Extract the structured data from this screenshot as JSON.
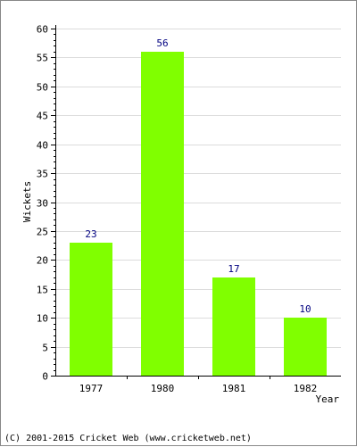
{
  "chart_data": {
    "type": "bar",
    "categories": [
      "1977",
      "1980",
      "1981",
      "1982"
    ],
    "series": [
      {
        "values": [
          23,
          56,
          17,
          10
        ]
      }
    ],
    "data_labels": [
      "23",
      "56",
      "17",
      "10"
    ],
    "xlabel": "Year",
    "ylabel": "Wickets",
    "ylim": [
      0,
      60
    ],
    "y_major_ticks": [
      "0",
      "5",
      "10",
      "15",
      "20",
      "25",
      "30",
      "35",
      "40",
      "45",
      "50",
      "55",
      "60"
    ],
    "grid": true,
    "colors": {
      "bar": "#80ff00",
      "data_label": "#000080",
      "grid": "#dcdcdc",
      "axis": "#000000"
    }
  },
  "footer": {
    "copyright": "(C) 2001-2015 Cricket Web (www.cricketweb.net)"
  }
}
